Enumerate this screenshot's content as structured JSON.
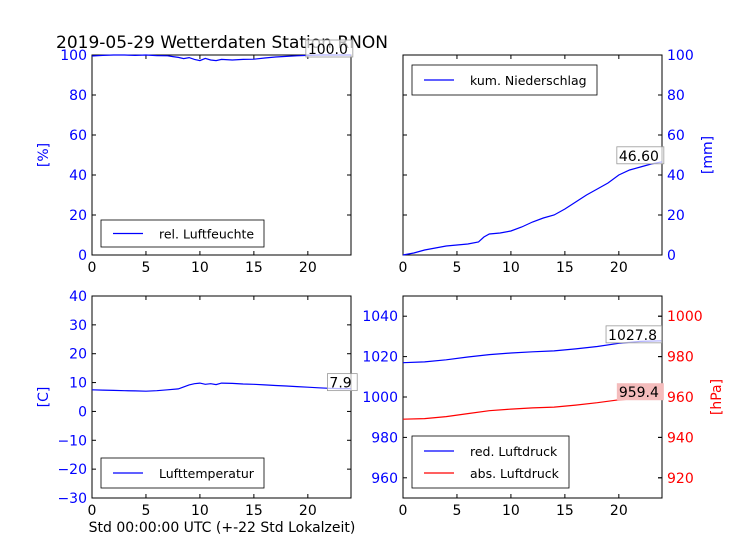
{
  "title": "2019-05-29 Wetterdaten Station RNON",
  "xlabel": "Std 00:00:00 UTC (+-22 Std Lokalzeit)",
  "colors": {
    "blue": "#0000ff",
    "red": "#ff0000",
    "axis": "#000000",
    "annot_red_bg": "#f4bcbc"
  },
  "chart_data": [
    {
      "id": "humidity",
      "type": "line",
      "x_range": [
        0,
        24
      ],
      "x_ticks": [
        0,
        5,
        10,
        15,
        20
      ],
      "ylim": [
        0,
        100
      ],
      "y_ticks": [
        0,
        20,
        40,
        60,
        80,
        100
      ],
      "ylabel": "[%]",
      "ylabel_color": "#0000ff",
      "y_axis_side": "left",
      "legend_position": "lower-left",
      "series": [
        {
          "name": "rel. Luftfeuchte",
          "color": "#0000ff",
          "x": [
            0,
            1,
            2,
            3,
            4,
            5,
            6,
            7,
            7.5,
            8,
            8.5,
            9,
            9.5,
            10,
            10.5,
            11,
            11.5,
            12,
            13,
            14,
            15,
            16,
            17,
            18,
            19,
            20,
            21,
            22,
            23,
            24
          ],
          "y": [
            99.5,
            99.8,
            100,
            100,
            99.8,
            100,
            99.7,
            99.6,
            99.2,
            98.8,
            98.2,
            98.7,
            97.8,
            97.2,
            98.3,
            97.5,
            97.2,
            97.8,
            97.5,
            97.8,
            97.9,
            98.5,
            99.0,
            99.3,
            99.6,
            99.8,
            100,
            100,
            100,
            100
          ]
        }
      ],
      "annotation": {
        "text": "100.0",
        "x": 20,
        "y": 100
      }
    },
    {
      "id": "precipitation",
      "type": "line",
      "x_range": [
        0,
        24
      ],
      "x_ticks": [
        0,
        5,
        10,
        15,
        20
      ],
      "ylim": [
        0,
        100
      ],
      "y_ticks": [
        0,
        20,
        40,
        60,
        80,
        100
      ],
      "ylabel": "[mm]",
      "ylabel_color": "#0000ff",
      "y_axis_side": "right",
      "legend_position": "upper-left",
      "series": [
        {
          "name": "kum. Niederschlag",
          "color": "#0000ff",
          "x": [
            0,
            1,
            2,
            3,
            4,
            5,
            6,
            7,
            7.5,
            8,
            9,
            10,
            11,
            12,
            13,
            14,
            15,
            16,
            17,
            18,
            19,
            20,
            21,
            22,
            23,
            24
          ],
          "y": [
            0,
            1,
            2.5,
            3.5,
            4.5,
            5,
            5.5,
            6.5,
            9,
            10.5,
            11,
            12,
            14,
            16.5,
            18.5,
            20,
            23,
            26.5,
            30,
            33,
            36,
            40,
            42.5,
            44,
            45.5,
            46.6
          ]
        }
      ],
      "annotation": {
        "text": "46.60",
        "x": 20,
        "y": 46.6
      }
    },
    {
      "id": "temperature",
      "type": "line",
      "x_range": [
        0,
        24
      ],
      "x_ticks": [
        0,
        5,
        10,
        15,
        20
      ],
      "ylim": [
        -30,
        40
      ],
      "y_ticks": [
        -30,
        -20,
        -10,
        0,
        10,
        20,
        30,
        40
      ],
      "ylabel": "[C]",
      "ylabel_color": "#0000ff",
      "y_axis_side": "left",
      "legend_position": "lower-left",
      "series": [
        {
          "name": "Lufttemperatur",
          "color": "#0000ff",
          "x": [
            0,
            1,
            2,
            3,
            4,
            5,
            6,
            7,
            8,
            8.5,
            9,
            9.5,
            10,
            10.5,
            11,
            11.5,
            12,
            13,
            14,
            15,
            16,
            17,
            18,
            19,
            20,
            21,
            22,
            23,
            24
          ],
          "y": [
            7.5,
            7.4,
            7.3,
            7.2,
            7.1,
            7.0,
            7.2,
            7.5,
            7.8,
            8.5,
            9.2,
            9.6,
            9.8,
            9.4,
            9.6,
            9.3,
            9.8,
            9.7,
            9.5,
            9.4,
            9.2,
            9.0,
            8.8,
            8.6,
            8.4,
            8.2,
            8.0,
            7.9,
            7.9
          ]
        }
      ],
      "annotation": {
        "text": "7.9",
        "x": 22,
        "y": 7.9
      }
    },
    {
      "id": "pressure",
      "type": "line",
      "x_range": [
        0,
        24
      ],
      "x_ticks": [
        0,
        5,
        10,
        15,
        20
      ],
      "ylim": [
        950,
        1050
      ],
      "y_ticks": [
        960,
        980,
        1000,
        1020,
        1040
      ],
      "y2lim": [
        910,
        1010
      ],
      "y2_ticks": [
        920,
        940,
        960,
        980,
        1000
      ],
      "y2label": "[hPa]",
      "y2label_color": "#ff0000",
      "legend_position": "lower-left",
      "series": [
        {
          "name": "red. Luftdruck",
          "color": "#0000ff",
          "axis": "left",
          "x": [
            0,
            2,
            4,
            6,
            8,
            10,
            12,
            14,
            16,
            18,
            20,
            22,
            24
          ],
          "y": [
            1017.0,
            1017.4,
            1018.4,
            1019.8,
            1021.0,
            1021.8,
            1022.4,
            1022.8,
            1023.8,
            1025.0,
            1026.6,
            1027.5,
            1027.8
          ]
        },
        {
          "name": "abs. Luftdruck",
          "color": "#ff0000",
          "axis": "right",
          "x": [
            0,
            2,
            4,
            6,
            8,
            10,
            12,
            14,
            16,
            18,
            20,
            22,
            24
          ],
          "y": [
            949.0,
            949.3,
            950.3,
            951.8,
            953.2,
            954.0,
            954.6,
            955.0,
            956.0,
            957.2,
            958.6,
            959.2,
            959.4
          ]
        }
      ],
      "annotations": [
        {
          "text": "1027.8",
          "x": 19,
          "y": 1027.8,
          "axis": "left",
          "style": "plain"
        },
        {
          "text": "959.4",
          "x": 20,
          "y": 959.4,
          "axis": "right",
          "style": "red"
        }
      ]
    }
  ]
}
